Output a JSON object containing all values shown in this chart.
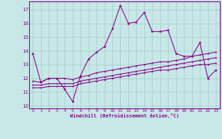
{
  "xlabel": "Windchill (Refroidissement éolien,°C)",
  "bg_color": "#c8e8e8",
  "grid_color": "#a0c8c8",
  "line_color": "#880088",
  "xlim": [
    -0.5,
    23.5
  ],
  "ylim": [
    9.8,
    17.6
  ],
  "yticks": [
    10,
    11,
    12,
    13,
    14,
    15,
    16,
    17
  ],
  "xticks": [
    0,
    1,
    2,
    3,
    4,
    5,
    6,
    7,
    8,
    9,
    10,
    11,
    12,
    13,
    14,
    15,
    16,
    17,
    18,
    19,
    20,
    21,
    22,
    23
  ],
  "series1_x": [
    0,
    1,
    2,
    3,
    4,
    5,
    6,
    7,
    8,
    9,
    10,
    11,
    12,
    13,
    14,
    15,
    16,
    17,
    18,
    19,
    20,
    21,
    22,
    23
  ],
  "series1_y": [
    13.8,
    11.7,
    12.0,
    12.0,
    11.2,
    10.3,
    12.2,
    13.4,
    13.9,
    14.3,
    15.6,
    17.3,
    16.0,
    16.1,
    16.8,
    15.4,
    15.4,
    15.5,
    13.8,
    13.6,
    13.6,
    14.6,
    12.0,
    12.6
  ],
  "series2_x": [
    0,
    1,
    2,
    3,
    4,
    5,
    6,
    7,
    8,
    9,
    10,
    11,
    12,
    13,
    14,
    15,
    16,
    17,
    18,
    19,
    20,
    21,
    22,
    23
  ],
  "series2_y": [
    11.8,
    11.7,
    12.0,
    12.0,
    12.0,
    11.9,
    12.1,
    12.2,
    12.4,
    12.5,
    12.6,
    12.7,
    12.8,
    12.9,
    13.0,
    13.1,
    13.2,
    13.2,
    13.3,
    13.4,
    13.6,
    13.7,
    13.8,
    13.9
  ],
  "series3_x": [
    0,
    1,
    2,
    3,
    4,
    5,
    6,
    7,
    8,
    9,
    10,
    11,
    12,
    13,
    14,
    15,
    16,
    17,
    18,
    19,
    20,
    21,
    22,
    23
  ],
  "series3_y": [
    11.5,
    11.5,
    11.6,
    11.6,
    11.6,
    11.6,
    11.8,
    11.9,
    12.0,
    12.1,
    12.2,
    12.3,
    12.4,
    12.5,
    12.6,
    12.7,
    12.8,
    12.9,
    13.0,
    13.1,
    13.2,
    13.3,
    13.4,
    13.5
  ],
  "series4_x": [
    0,
    1,
    2,
    3,
    4,
    5,
    6,
    7,
    8,
    9,
    10,
    11,
    12,
    13,
    14,
    15,
    16,
    17,
    18,
    19,
    20,
    21,
    22,
    23
  ],
  "series4_y": [
    11.3,
    11.3,
    11.4,
    11.4,
    11.4,
    11.4,
    11.6,
    11.7,
    11.8,
    11.9,
    12.0,
    12.1,
    12.2,
    12.3,
    12.4,
    12.5,
    12.6,
    12.6,
    12.7,
    12.8,
    12.9,
    13.0,
    13.0,
    13.1
  ]
}
